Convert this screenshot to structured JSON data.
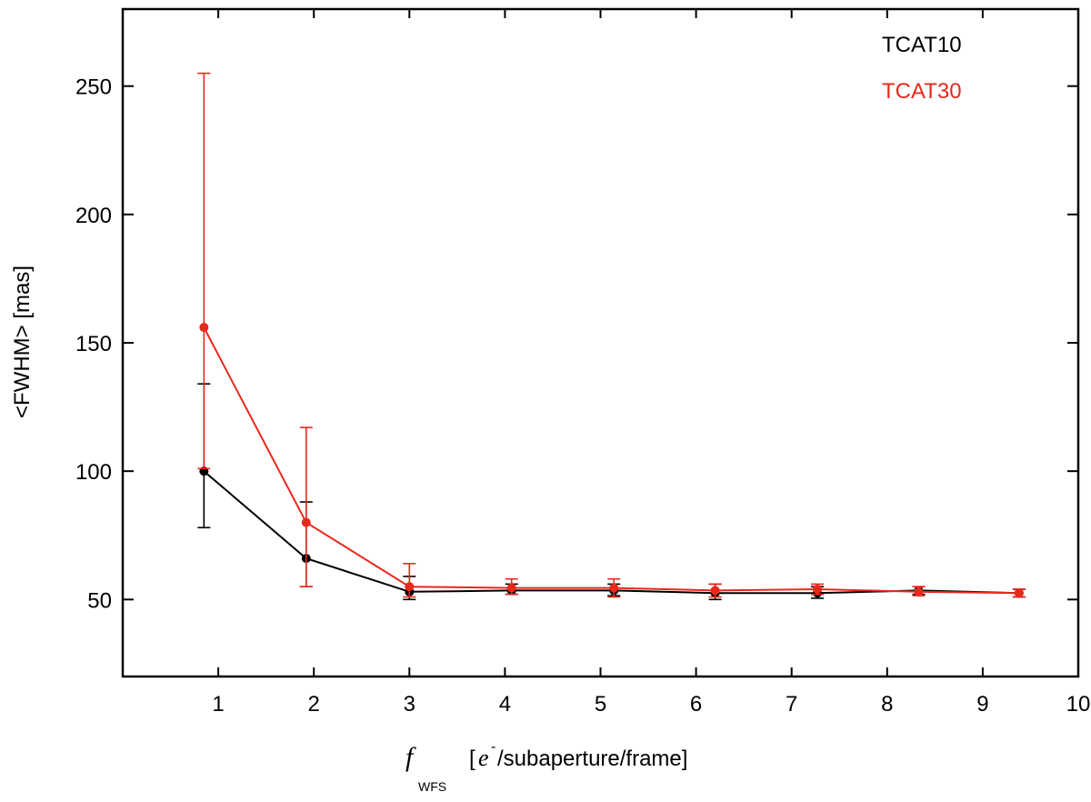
{
  "chart_data": {
    "type": "line",
    "title": "",
    "xlabel": {
      "symbol": "f",
      "subscript": "WFS",
      "bracket_open": "[",
      "e": "e",
      "superscript": "-",
      "unit_rest": "/subaperture/frame]"
    },
    "ylabel": "<FWHM> [mas]",
    "xlim": [
      0,
      10
    ],
    "ylim": [
      20,
      280
    ],
    "xticks": [
      1,
      2,
      3,
      4,
      5,
      6,
      7,
      8,
      9,
      10
    ],
    "yticks": [
      50,
      100,
      150,
      200,
      250
    ],
    "grid": false,
    "legend_position": "top-right",
    "series": [
      {
        "name": "TCAT10",
        "color": "#000000",
        "points": [
          {
            "x": 0.85,
            "y": 100,
            "err_low": 78,
            "err_high": 134
          },
          {
            "x": 1.92,
            "y": 66,
            "err_low": 55,
            "err_high": 88
          },
          {
            "x": 3.0,
            "y": 53,
            "err_low": 50,
            "err_high": 59
          },
          {
            "x": 4.07,
            "y": 53.5,
            "err_low": 52,
            "err_high": 56
          },
          {
            "x": 5.14,
            "y": 53.5,
            "err_low": 51.5,
            "err_high": 56
          },
          {
            "x": 6.2,
            "y": 52.5,
            "err_low": 50,
            "err_high": 56
          },
          {
            "x": 7.27,
            "y": 52.5,
            "err_low": 50.5,
            "err_high": 55
          },
          {
            "x": 8.33,
            "y": 53.5,
            "err_low": 52,
            "err_high": 55
          },
          {
            "x": 9.38,
            "y": 52.5,
            "err_low": 51,
            "err_high": 54
          }
        ]
      },
      {
        "name": "TCAT30",
        "color": "#e8291c",
        "points": [
          {
            "x": 0.85,
            "y": 156,
            "err_low": 101,
            "err_high": 255
          },
          {
            "x": 1.92,
            "y": 80,
            "err_low": 55,
            "err_high": 117
          },
          {
            "x": 3.0,
            "y": 55,
            "err_low": 51,
            "err_high": 64
          },
          {
            "x": 4.07,
            "y": 54.5,
            "err_low": 52,
            "err_high": 58
          },
          {
            "x": 5.14,
            "y": 54.5,
            "err_low": 51,
            "err_high": 58
          },
          {
            "x": 6.2,
            "y": 53.5,
            "err_low": 51,
            "err_high": 56
          },
          {
            "x": 7.27,
            "y": 54,
            "err_low": 52,
            "err_high": 56
          },
          {
            "x": 8.33,
            "y": 53,
            "err_low": 51.5,
            "err_high": 55
          },
          {
            "x": 9.38,
            "y": 52.5,
            "err_low": 51,
            "err_high": 54
          }
        ]
      }
    ]
  }
}
